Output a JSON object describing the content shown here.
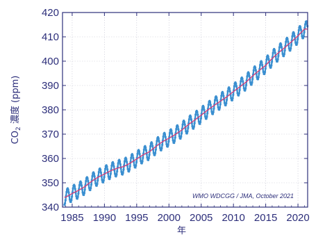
{
  "chart_data": {
    "type": "line",
    "title": "",
    "xlabel": "年",
    "ylabel_main": "CO",
    "ylabel_sub": "2",
    "ylabel_rest": " 濃度 (ppm)",
    "xlim": [
      1983.5,
      2021.5
    ],
    "ylim": [
      340,
      420
    ],
    "xticks": [
      1985,
      1990,
      1995,
      2000,
      2005,
      2010,
      2015,
      2020
    ],
    "yticks": [
      340,
      350,
      360,
      370,
      380,
      390,
      400,
      410,
      420
    ],
    "grid": true,
    "annotation": "WMO WDCGG / JMA, October 2021",
    "colors": {
      "monthly": "#3a8fd0",
      "trend": "#d0407a",
      "frame": "#2c2e7a",
      "grid": "#c9c9d6"
    },
    "series": [
      {
        "style": "dotted-seasonal",
        "x": [
          1984,
          1985,
          1986,
          1987,
          1988,
          1989,
          1990,
          1991,
          1992,
          1993,
          1994,
          1995,
          1996,
          1997,
          1998,
          1999,
          2000,
          2001,
          2002,
          2003,
          2004,
          2005,
          2006,
          2007,
          2008,
          2009,
          2010,
          2011,
          2012,
          2013,
          2014,
          2015,
          2016,
          2017,
          2018,
          2019,
          2020,
          2021
        ],
        "values": [
          344.1,
          345.6,
          346.9,
          348.5,
          350.6,
          352.3,
          353.6,
          355.0,
          356.0,
          356.7,
          358.1,
          359.8,
          361.5,
          362.8,
          365.0,
          366.9,
          368.3,
          369.9,
          371.7,
          373.9,
          375.8,
          377.8,
          379.9,
          381.8,
          383.6,
          385.4,
          387.5,
          389.5,
          391.5,
          394.0,
          396.2,
          398.3,
          401.1,
          403.5,
          405.7,
          408.0,
          410.4,
          413.2
        ],
        "amplitude": 3.2
      },
      {
        "style": "trend",
        "x": [
          1984,
          1985,
          1986,
          1987,
          1988,
          1989,
          1990,
          1991,
          1992,
          1993,
          1994,
          1995,
          1996,
          1997,
          1998,
          1999,
          2000,
          2001,
          2002,
          2003,
          2004,
          2005,
          2006,
          2007,
          2008,
          2009,
          2010,
          2011,
          2012,
          2013,
          2014,
          2015,
          2016,
          2017,
          2018,
          2019,
          2020,
          2021
        ],
        "values": [
          344.1,
          345.6,
          346.9,
          348.5,
          350.6,
          352.3,
          353.6,
          355.0,
          356.0,
          356.7,
          358.1,
          359.8,
          361.5,
          362.8,
          365.0,
          366.9,
          368.3,
          369.9,
          371.7,
          373.9,
          375.8,
          377.8,
          379.9,
          381.8,
          383.6,
          385.4,
          387.5,
          389.5,
          391.5,
          394.0,
          396.2,
          398.3,
          401.1,
          403.5,
          405.7,
          408.0,
          410.4,
          413.2
        ]
      }
    ]
  }
}
